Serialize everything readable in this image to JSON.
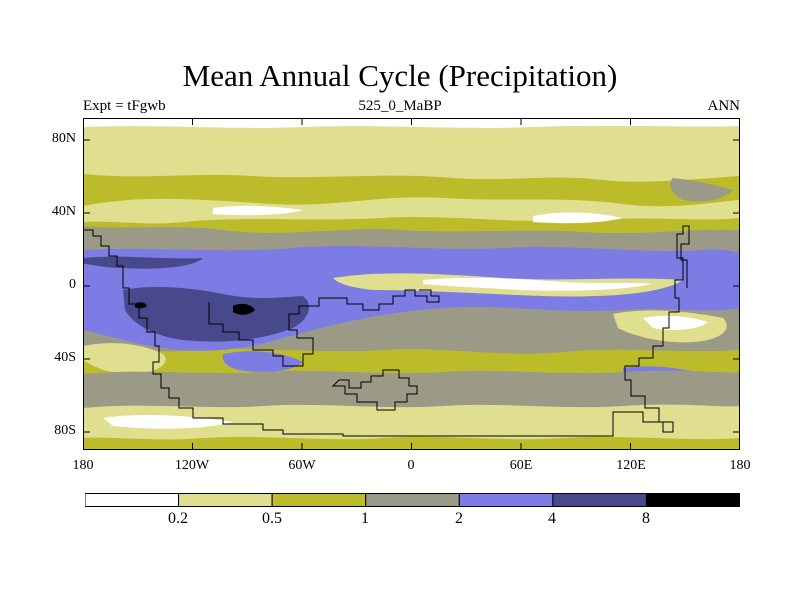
{
  "title": "Mean Annual Cycle (Precipitation)",
  "subtitle_left": "Expt = tFgwb",
  "subtitle_center": "525_0_MaBP",
  "subtitle_right": "ANN",
  "map": {
    "y_ticks": [
      "80N",
      "40N",
      "0",
      "40S",
      "80S"
    ],
    "x_ticks": [
      "180",
      "120W",
      "60W",
      "0",
      "60E",
      "120E",
      "180"
    ]
  },
  "colorbar": {
    "labels": [
      "0.2",
      "0.5",
      "1",
      "2",
      "4",
      "8"
    ],
    "colors": [
      "#ffffff",
      "#e0df8f",
      "#bcbc2a",
      "#9a9a86",
      "#7c7ce4",
      "#48488c",
      "#000000"
    ]
  }
}
